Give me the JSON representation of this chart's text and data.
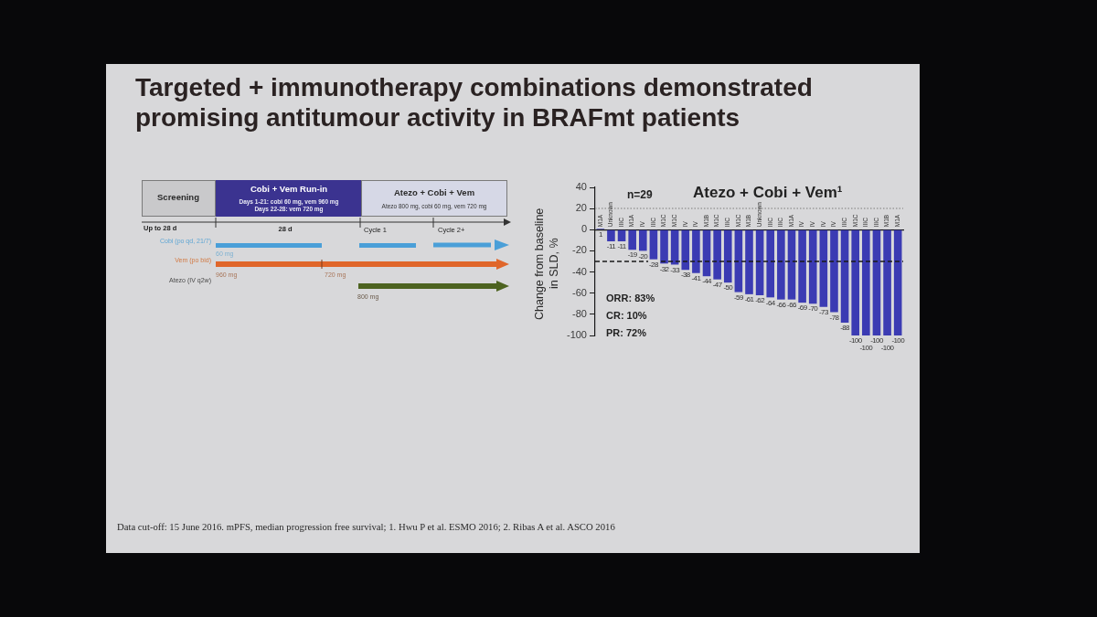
{
  "chart_data": [
    {
      "type": "other",
      "title": "Targeted + immunotherapy combinations demonstrated promising antitumour activity in BRAFmt patients",
      "annotations": [
        "Screening",
        "Cobi + Vem Run-in",
        "Days 1-21: cobi 60 mg, vem 960 mg",
        "Days 22-28: vem 720 mg",
        "Atezo + Cobi + Vem",
        "Atezo 800 mg, cobi 60 mg, vem 720 mg",
        "Up to 28 d",
        "28 d",
        "Cycle 1",
        "Cycle 2+",
        "Cobi (po qd, 21/7)",
        "60 mg",
        "Vem (po bid)",
        "960 mg",
        "720 mg",
        "Atezo (IV q2w)",
        "800 mg",
        "Data cut-off: 15 June 2016. mPFS, median progression free survival; 1. Hwu P et al. ESMO 2016; 2. Ribas A et al. ASCO 2016"
      ]
    },
    {
      "type": "bar",
      "title": "Atezo + Cobi + Vem¹",
      "ylabel": "Change from baseline in SLD, %",
      "categories": [
        "M1A",
        "Unknown",
        "IIIC",
        "M1A",
        "IV",
        "IIIC",
        "M1C",
        "M1C",
        "IV",
        "IV",
        "M1B",
        "M1C",
        "IIIC",
        "M1C",
        "M1B",
        "Unknown",
        "IIIC",
        "IIIC",
        "M1A",
        "IV",
        "IV",
        "IV",
        "IV",
        "IIIC",
        "M1C",
        "IIIC",
        "IIIC",
        "M1B",
        "M1A"
      ],
      "values": [
        1,
        -11,
        -11,
        -19,
        -20,
        -28,
        -32,
        -33,
        -38,
        -41,
        -44,
        -47,
        -50,
        -59,
        -61,
        -62,
        -64,
        -66,
        -66,
        -69,
        -70,
        -73,
        -78,
        -88,
        -100,
        -100,
        -100,
        -100,
        -100
      ],
      "color": "#3b3bb3",
      "ylim": [
        -100,
        40
      ],
      "yticks": [
        -100,
        -80,
        -60,
        -40,
        -20,
        0,
        20,
        40
      ],
      "data_labels": true,
      "ref_lines": [
        {
          "axis": "y",
          "value": 20,
          "color": "#9a9a9a",
          "line_style": "dotted"
        },
        {
          "axis": "y",
          "value": -30,
          "color": "#1a1a1a",
          "line_style": "dashed"
        }
      ],
      "annotations": [
        "n=29",
        "ORR: 83%",
        "CR: 10%",
        "PR: 72%"
      ]
    }
  ]
}
